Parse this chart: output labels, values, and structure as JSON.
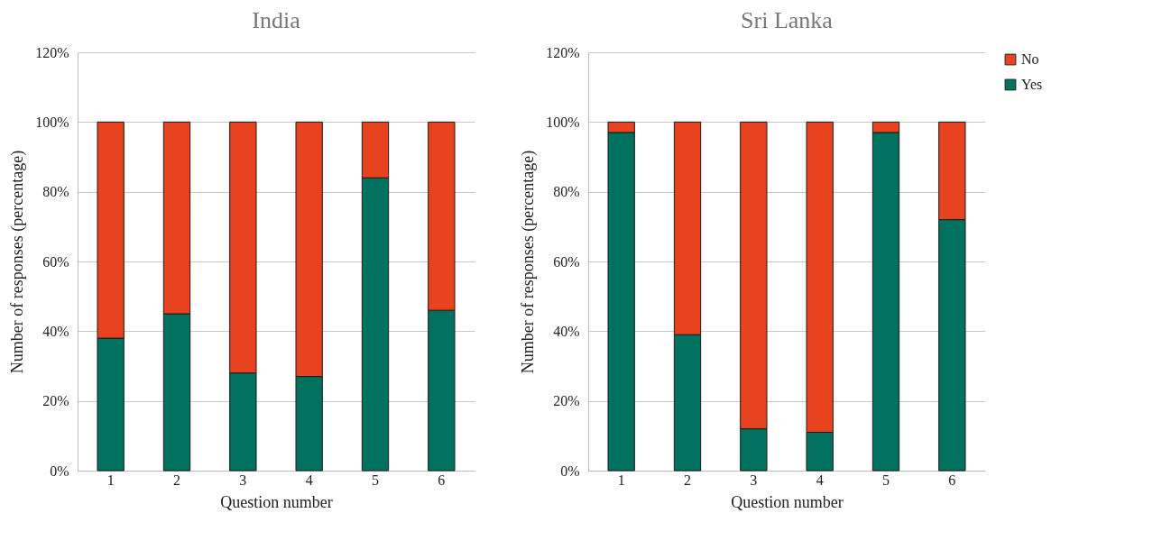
{
  "chart_data": [
    {
      "type": "bar",
      "title": "India",
      "xlabel": "Question number",
      "ylabel": "Number of responses (percentage)",
      "categories": [
        "1",
        "2",
        "3",
        "4",
        "5",
        "6"
      ],
      "stacked": true,
      "ylim": [
        0,
        120
      ],
      "yticks": [
        {
          "value": 0,
          "label": "0%"
        },
        {
          "value": 20,
          "label": "20%"
        },
        {
          "value": 40,
          "label": "40%"
        },
        {
          "value": 60,
          "label": "60%"
        },
        {
          "value": 80,
          "label": "80%"
        },
        {
          "value": 100,
          "label": "100%"
        },
        {
          "value": 120,
          "label": "120%"
        }
      ],
      "grid": "y",
      "legend": false,
      "series": [
        {
          "color": "#00705f",
          "values": [
            38,
            45,
            28,
            27,
            84,
            46
          ]
        },
        {
          "color": "#e8431f",
          "values": [
            62,
            55,
            72,
            73,
            16,
            54
          ]
        }
      ]
    },
    {
      "type": "bar",
      "title": "Sri Lanka",
      "xlabel": "Question number",
      "ylabel": "Number of responses (percentage)",
      "categories": [
        "1",
        "2",
        "3",
        "4",
        "5",
        "6"
      ],
      "stacked": true,
      "ylim": [
        0,
        120
      ],
      "yticks": [
        {
          "value": 0,
          "label": "0%"
        },
        {
          "value": 20,
          "label": "20%"
        },
        {
          "value": 40,
          "label": "40%"
        },
        {
          "value": 60,
          "label": "60%"
        },
        {
          "value": 80,
          "label": "80%"
        },
        {
          "value": 100,
          "label": "100%"
        },
        {
          "value": 120,
          "label": "120%"
        }
      ],
      "grid": "y",
      "legend": "right",
      "series": [
        {
          "name": "Yes",
          "color": "#00705f",
          "values": [
            97,
            39,
            12,
            11,
            97,
            72
          ]
        },
        {
          "name": "No",
          "color": "#e8431f",
          "values": [
            3,
            61,
            88,
            89,
            3,
            28
          ]
        }
      ]
    }
  ]
}
